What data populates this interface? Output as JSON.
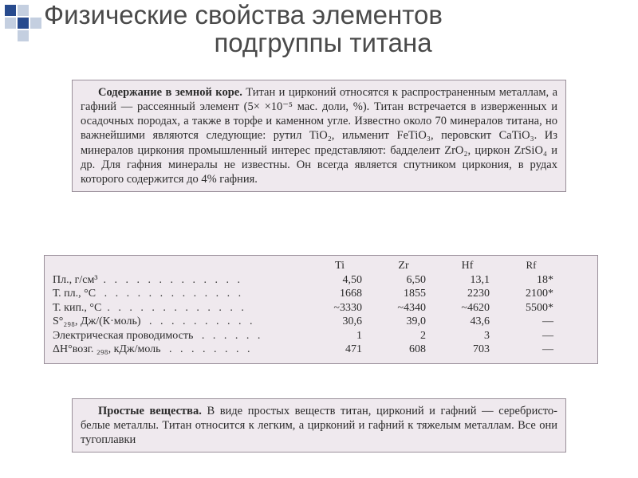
{
  "deco": {
    "dark_color": "#284b8e",
    "light_color": "#c4cfe0"
  },
  "title": {
    "line1": "Физические свойства элементов",
    "line2": "подгруппы титана",
    "color": "#4a4a4a",
    "fontsize": 33
  },
  "scan_background": "#efe9ee",
  "content": {
    "heading": "Содержание в земной коре.",
    "body": "Титан и цирконий относятся к распространенным металлам, а гафний — рассеянный элемент (5× ×10⁻⁵ мас. доли, %). Титан встречается в изверженных и осадочных породах, а также в торфе и каменном угле. Известно около 70 минералов титана, но важнейшими являются следующие: рутил TiO₂, ильменит FeTiO₃, перовскит CaTiO₃. Из минералов циркония промышленный интерес представляют: бадделеит ZrO₂, циркон ZrSiO₄ и др. Для гафния минералы не известны. Он всегда является спутником циркония, в рудах которого содержится до 4% гафния."
  },
  "table": {
    "headers": [
      "",
      "Ti",
      "Zr",
      "Hf",
      "Rf"
    ],
    "rows": [
      {
        "label": "Пл., г/см³",
        "dots": "  .   .   .   .   .   .   .   .   .   .   .   .   .",
        "cells": [
          "4,50",
          "6,50",
          "13,1",
          "18*"
        ]
      },
      {
        "label": "Т. пл., °С",
        "dots": "   .   .   .   .   .   .   .   .   .   .   .   .   .",
        "cells": [
          "1668",
          "1855",
          "2230",
          "2100*"
        ]
      },
      {
        "label": "Т. кип., °С",
        "dots": "  .   .   .   .   .   .   .   .   .   .   .   .   .",
        "cells": [
          "~3330",
          "~4340",
          "~4620",
          "5500*"
        ]
      },
      {
        "label": "S°₂₉₈, Дж/(К·моль)",
        "dots": "   .   .   .   .   .   .   .   .   .   .",
        "cells": [
          "30,6",
          "39,0",
          "43,6",
          "—"
        ]
      },
      {
        "label": "Электрическая проводимость",
        "dots": "   .   .   .   .   .   .",
        "cells": [
          "1",
          "2",
          "3",
          "—"
        ]
      },
      {
        "label": "ΔH°возг. ₂₉₈, кДж/моль",
        "dots": "   .   .   .   .   .   .   .   .",
        "cells": [
          "471",
          "608",
          "703",
          "—"
        ]
      }
    ]
  },
  "simple": {
    "heading": "Простые вещества.",
    "body": "В виде простых веществ титан, цирконий и гафний — серебристо-белые металлы. Титан относится к легким, а цирконий и гафний к тяжелым металлам. Все они тугоплавки"
  }
}
